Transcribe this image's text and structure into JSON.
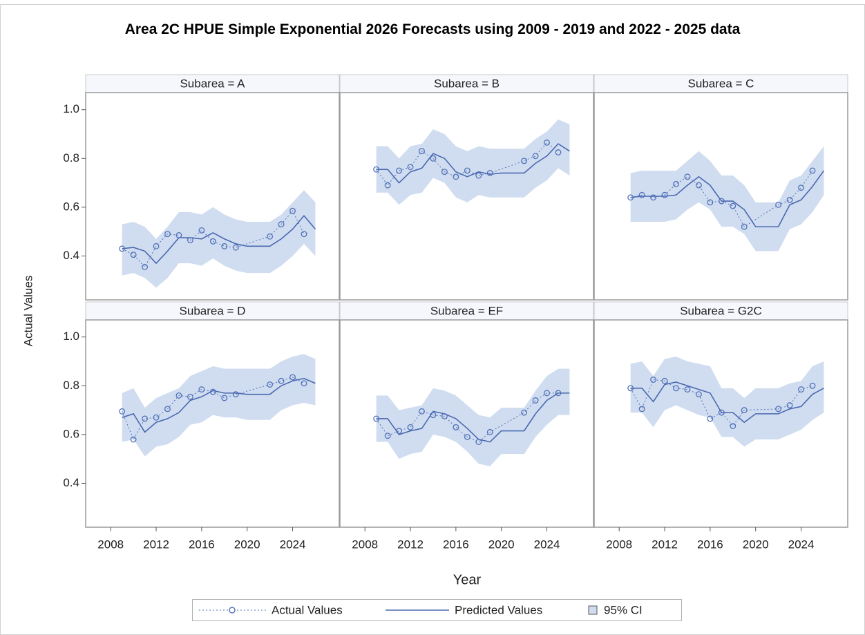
{
  "chart_data": {
    "type": "line",
    "title": "Area 2C HPUE Simple Exponential 2026 Forecasts using 2009 - 2019 and 2022 - 2025 data",
    "x_label": "Year",
    "y_label": "Actual Values",
    "xlim": [
      2005.8,
      2028.1
    ],
    "xticks": [
      2008,
      2012,
      2016,
      2020,
      2024
    ],
    "ylim": [
      0.22,
      1.07
    ],
    "yticks": [
      0.4,
      0.6,
      0.8,
      {
        "value": 1,
        "label": "1.0"
      }
    ],
    "grid": false,
    "series": [
      {
        "name": "Actual Values",
        "color": "#5070b8"
      },
      {
        "name": "Predicted Values",
        "color": "#4a68b0"
      },
      {
        "name": "95% CI",
        "color": "#d0ddf0"
      }
    ],
    "panels": [
      {
        "title": "Subarea = A",
        "series": [
          {
            "x": [
              2009,
              2010,
              2011,
              2012,
              2013,
              2014,
              2015,
              2016,
              2017,
              2018,
              2019,
              2022,
              2023,
              2024,
              2025
            ],
            "values": [
              0.43,
              0.405,
              0.355,
              0.44,
              0.49,
              0.485,
              0.465,
              0.505,
              0.46,
              0.44,
              0.435,
              0.48,
              0.53,
              0.585,
              0.49
            ]
          },
          {
            "x": [
              2009,
              2010,
              2011,
              2012,
              2013,
              2014,
              2015,
              2016,
              2017,
              2018,
              2019,
              2020,
              2021,
              2022,
              2023,
              2024,
              2025,
              2026
            ],
            "values": [
              0.43,
              0.435,
              0.42,
              0.37,
              0.42,
              0.475,
              0.475,
              0.47,
              0.495,
              0.47,
              0.45,
              0.44,
              0.44,
              0.44,
              0.47,
              0.51,
              0.565,
              0.51
            ]
          },
          {
            "x": [
              2009,
              2010,
              2011,
              2012,
              2013,
              2014,
              2015,
              2016,
              2017,
              2018,
              2019,
              2020,
              2021,
              2022,
              2023,
              2024,
              2025,
              2026
            ],
            "lower": [
              0.32,
              0.33,
              0.31,
              0.27,
              0.31,
              0.37,
              0.37,
              0.36,
              0.39,
              0.36,
              0.34,
              0.33,
              0.33,
              0.33,
              0.36,
              0.4,
              0.45,
              0.4
            ],
            "upper": [
              0.53,
              0.54,
              0.52,
              0.47,
              0.52,
              0.58,
              0.58,
              0.57,
              0.6,
              0.57,
              0.55,
              0.54,
              0.54,
              0.54,
              0.57,
              0.62,
              0.67,
              0.62
            ]
          }
        ]
      },
      {
        "title": "Subarea = B",
        "series": [
          {
            "x": [
              2009,
              2010,
              2011,
              2012,
              2013,
              2014,
              2015,
              2016,
              2017,
              2018,
              2019,
              2022,
              2023,
              2024,
              2025
            ],
            "values": [
              0.755,
              0.69,
              0.75,
              0.765,
              0.83,
              0.8,
              0.745,
              0.725,
              0.75,
              0.73,
              0.74,
              0.79,
              0.81,
              0.865,
              0.825
            ]
          },
          {
            "x": [
              2009,
              2010,
              2011,
              2012,
              2013,
              2014,
              2015,
              2016,
              2017,
              2018,
              2019,
              2020,
              2021,
              2022,
              2023,
              2024,
              2025,
              2026
            ],
            "values": [
              0.755,
              0.755,
              0.7,
              0.745,
              0.76,
              0.82,
              0.8,
              0.745,
              0.725,
              0.745,
              0.735,
              0.74,
              0.74,
              0.74,
              0.78,
              0.81,
              0.86,
              0.83
            ]
          },
          {
            "x": [
              2009,
              2010,
              2011,
              2012,
              2013,
              2014,
              2015,
              2016,
              2017,
              2018,
              2019,
              2020,
              2021,
              2022,
              2023,
              2024,
              2025,
              2026
            ],
            "lower": [
              0.66,
              0.66,
              0.61,
              0.65,
              0.66,
              0.72,
              0.7,
              0.64,
              0.62,
              0.65,
              0.64,
              0.64,
              0.64,
              0.64,
              0.68,
              0.71,
              0.76,
              0.73
            ],
            "upper": [
              0.85,
              0.85,
              0.8,
              0.85,
              0.86,
              0.92,
              0.9,
              0.85,
              0.83,
              0.85,
              0.84,
              0.84,
              0.84,
              0.84,
              0.88,
              0.91,
              0.96,
              0.94
            ]
          }
        ]
      },
      {
        "title": "Subarea = C",
        "series": [
          {
            "x": [
              2009,
              2010,
              2011,
              2012,
              2013,
              2014,
              2015,
              2016,
              2017,
              2018,
              2019,
              2022,
              2023,
              2024,
              2025
            ],
            "values": [
              0.64,
              0.65,
              0.64,
              0.65,
              0.695,
              0.725,
              0.69,
              0.62,
              0.625,
              0.605,
              0.52,
              0.61,
              0.63,
              0.68,
              0.75
            ]
          },
          {
            "x": [
              2009,
              2010,
              2011,
              2012,
              2013,
              2014,
              2015,
              2016,
              2017,
              2018,
              2019,
              2020,
              2021,
              2022,
              2023,
              2024,
              2025,
              2026
            ],
            "values": [
              0.64,
              0.645,
              0.645,
              0.645,
              0.65,
              0.69,
              0.725,
              0.69,
              0.625,
              0.625,
              0.59,
              0.52,
              0.52,
              0.52,
              0.61,
              0.63,
              0.685,
              0.75
            ]
          },
          {
            "x": [
              2009,
              2010,
              2011,
              2012,
              2013,
              2014,
              2015,
              2016,
              2017,
              2018,
              2019,
              2020,
              2021,
              2022,
              2023,
              2024,
              2025,
              2026
            ],
            "lower": [
              0.54,
              0.54,
              0.54,
              0.54,
              0.55,
              0.59,
              0.62,
              0.59,
              0.52,
              0.52,
              0.49,
              0.42,
              0.42,
              0.42,
              0.51,
              0.53,
              0.58,
              0.65
            ],
            "upper": [
              0.74,
              0.75,
              0.75,
              0.75,
              0.75,
              0.79,
              0.83,
              0.79,
              0.73,
              0.73,
              0.69,
              0.62,
              0.62,
              0.62,
              0.71,
              0.73,
              0.79,
              0.85
            ]
          }
        ]
      },
      {
        "title": "Subarea = D",
        "series": [
          {
            "x": [
              2009,
              2010,
              2011,
              2012,
              2013,
              2014,
              2015,
              2016,
              2017,
              2018,
              2019,
              2022,
              2023,
              2024,
              2025
            ],
            "values": [
              0.695,
              0.58,
              0.665,
              0.67,
              0.705,
              0.76,
              0.755,
              0.785,
              0.775,
              0.75,
              0.765,
              0.805,
              0.82,
              0.835,
              0.81
            ]
          },
          {
            "x": [
              2009,
              2010,
              2011,
              2012,
              2013,
              2014,
              2015,
              2016,
              2017,
              2018,
              2019,
              2020,
              2021,
              2022,
              2023,
              2024,
              2025,
              2026
            ],
            "values": [
              0.67,
              0.685,
              0.61,
              0.65,
              0.665,
              0.69,
              0.74,
              0.755,
              0.78,
              0.77,
              0.77,
              0.765,
              0.765,
              0.765,
              0.8,
              0.82,
              0.83,
              0.81
            ]
          },
          {
            "x": [
              2009,
              2010,
              2011,
              2012,
              2013,
              2014,
              2015,
              2016,
              2017,
              2018,
              2019,
              2020,
              2021,
              2022,
              2023,
              2024,
              2025,
              2026
            ],
            "lower": [
              0.57,
              0.58,
              0.51,
              0.55,
              0.56,
              0.59,
              0.64,
              0.65,
              0.68,
              0.67,
              0.67,
              0.66,
              0.66,
              0.66,
              0.7,
              0.72,
              0.73,
              0.72
            ],
            "upper": [
              0.77,
              0.79,
              0.71,
              0.75,
              0.77,
              0.79,
              0.84,
              0.86,
              0.88,
              0.87,
              0.87,
              0.87,
              0.87,
              0.87,
              0.9,
              0.92,
              0.93,
              0.91
            ]
          }
        ]
      },
      {
        "title": "Subarea = EF",
        "series": [
          {
            "x": [
              2009,
              2010,
              2011,
              2012,
              2013,
              2014,
              2015,
              2016,
              2017,
              2018,
              2019,
              2022,
              2023,
              2024,
              2025
            ],
            "values": [
              0.665,
              0.595,
              0.615,
              0.63,
              0.695,
              0.68,
              0.675,
              0.63,
              0.59,
              0.57,
              0.61,
              0.69,
              0.74,
              0.77,
              0.77
            ]
          },
          {
            "x": [
              2009,
              2010,
              2011,
              2012,
              2013,
              2014,
              2015,
              2016,
              2017,
              2018,
              2019,
              2020,
              2021,
              2022,
              2023,
              2024,
              2025,
              2026
            ],
            "values": [
              0.665,
              0.665,
              0.6,
              0.615,
              0.625,
              0.695,
              0.685,
              0.665,
              0.625,
              0.58,
              0.57,
              0.615,
              0.615,
              0.615,
              0.685,
              0.74,
              0.77,
              0.77
            ]
          },
          {
            "x": [
              2009,
              2010,
              2011,
              2012,
              2013,
              2014,
              2015,
              2016,
              2017,
              2018,
              2019,
              2020,
              2021,
              2022,
              2023,
              2024,
              2025,
              2026
            ],
            "lower": [
              0.57,
              0.57,
              0.5,
              0.52,
              0.53,
              0.6,
              0.59,
              0.57,
              0.53,
              0.48,
              0.47,
              0.52,
              0.52,
              0.52,
              0.59,
              0.64,
              0.68,
              0.68
            ],
            "upper": [
              0.76,
              0.76,
              0.7,
              0.71,
              0.72,
              0.79,
              0.78,
              0.76,
              0.72,
              0.68,
              0.67,
              0.71,
              0.71,
              0.71,
              0.78,
              0.84,
              0.87,
              0.87
            ]
          }
        ]
      },
      {
        "title": "Subarea = G2C",
        "series": [
          {
            "x": [
              2009,
              2010,
              2011,
              2012,
              2013,
              2014,
              2015,
              2016,
              2017,
              2018,
              2019,
              2022,
              2023,
              2024,
              2025
            ],
            "values": [
              0.79,
              0.705,
              0.825,
              0.82,
              0.79,
              0.785,
              0.765,
              0.665,
              0.69,
              0.635,
              0.7,
              0.705,
              0.72,
              0.785,
              0.8
            ]
          },
          {
            "x": [
              2009,
              2010,
              2011,
              2012,
              2013,
              2014,
              2015,
              2016,
              2017,
              2018,
              2019,
              2020,
              2021,
              2022,
              2023,
              2024,
              2025,
              2026
            ],
            "values": [
              0.79,
              0.79,
              0.735,
              0.805,
              0.815,
              0.8,
              0.785,
              0.77,
              0.69,
              0.69,
              0.65,
              0.685,
              0.685,
              0.685,
              0.705,
              0.715,
              0.765,
              0.79
            ]
          },
          {
            "x": [
              2009,
              2010,
              2011,
              2012,
              2013,
              2014,
              2015,
              2016,
              2017,
              2018,
              2019,
              2020,
              2021,
              2022,
              2023,
              2024,
              2025,
              2026
            ],
            "lower": [
              0.69,
              0.69,
              0.63,
              0.7,
              0.72,
              0.7,
              0.68,
              0.67,
              0.59,
              0.59,
              0.55,
              0.58,
              0.58,
              0.58,
              0.6,
              0.62,
              0.66,
              0.69
            ],
            "upper": [
              0.89,
              0.9,
              0.84,
              0.91,
              0.92,
              0.9,
              0.89,
              0.88,
              0.79,
              0.79,
              0.75,
              0.79,
              0.79,
              0.79,
              0.81,
              0.82,
              0.88,
              0.9
            ]
          }
        ]
      }
    ]
  }
}
